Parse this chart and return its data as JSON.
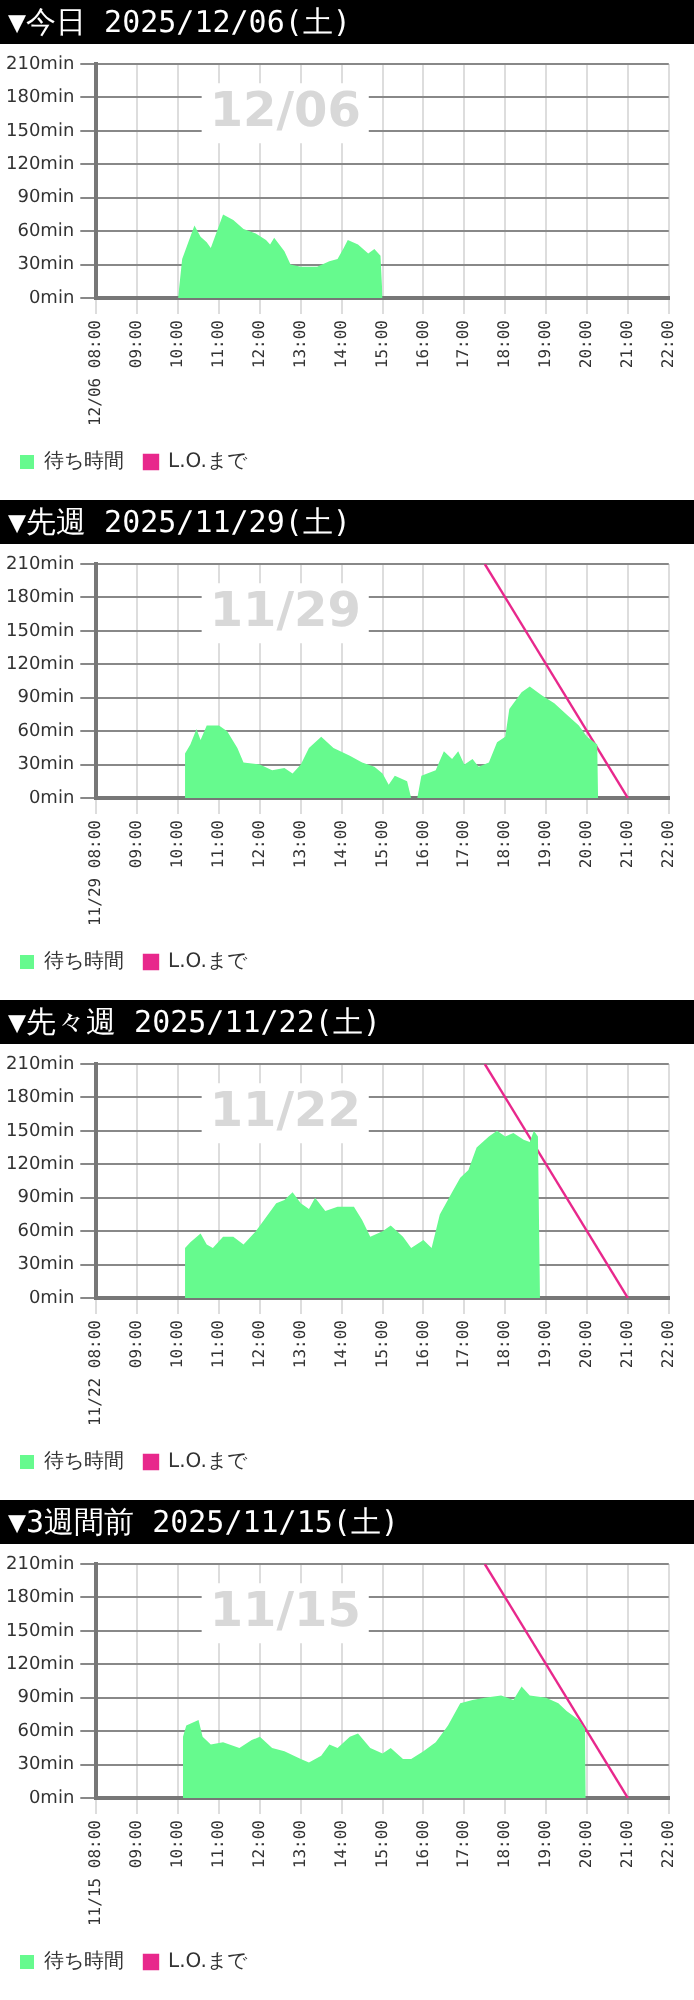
{
  "chart_data": [
    {
      "type": "area",
      "title": "▼今日 2025/12/06(土)",
      "annotations": [
        "12/06"
      ],
      "xlim": [
        8,
        22
      ],
      "xticks": [
        {
          "value": 8,
          "label": "12/06 08:00"
        },
        {
          "value": 9,
          "label": "09:00"
        },
        {
          "value": 10,
          "label": "10:00"
        },
        {
          "value": 11,
          "label": "11:00"
        },
        {
          "value": 12,
          "label": "12:00"
        },
        {
          "value": 13,
          "label": "13:00"
        },
        {
          "value": 14,
          "label": "14:00"
        },
        {
          "value": 15,
          "label": "15:00"
        },
        {
          "value": 16,
          "label": "16:00"
        },
        {
          "value": 17,
          "label": "17:00"
        },
        {
          "value": 18,
          "label": "18:00"
        },
        {
          "value": 19,
          "label": "19:00"
        },
        {
          "value": 20,
          "label": "20:00"
        },
        {
          "value": 21,
          "label": "21:00"
        },
        {
          "value": 22,
          "label": "22:00"
        }
      ],
      "ylim": [
        0,
        210
      ],
      "yticks": [
        {
          "value": 0,
          "label": "0min"
        },
        {
          "value": 30,
          "label": "30min"
        },
        {
          "value": 60,
          "label": "60min"
        },
        {
          "value": 90,
          "label": "90min"
        },
        {
          "value": 120,
          "label": "120min"
        },
        {
          "value": 150,
          "label": "150min"
        },
        {
          "value": 180,
          "label": "180min"
        },
        {
          "value": 210,
          "label": "210min"
        }
      ],
      "grid": true,
      "legend": "bottom left",
      "series": [
        {
          "name": "待ち時間",
          "type": "area",
          "color": "#66fa8e",
          "x": [
            10.0,
            10.1,
            10.25,
            10.4,
            10.55,
            10.7,
            10.8,
            11.1,
            11.35,
            11.6,
            11.9,
            12.15,
            12.25,
            12.35,
            12.6,
            12.75,
            13.0,
            13.4,
            13.7,
            13.9,
            14.05,
            14.15,
            14.4,
            14.65,
            14.8,
            14.95,
            15.0
          ],
          "values": [
            0,
            35,
            50,
            65,
            55,
            50,
            45,
            75,
            70,
            62,
            58,
            52,
            48,
            54,
            42,
            30,
            28,
            28,
            33,
            35,
            45,
            52,
            48,
            40,
            44,
            38,
            0
          ]
        },
        {
          "name": "L.O.まで",
          "type": "line",
          "color": "#e8288c"
        }
      ]
    },
    {
      "type": "area",
      "title": "▼先週 2025/11/29(土)",
      "annotations": [
        "11/29"
      ],
      "xlim": [
        8,
        22
      ],
      "xticks": [
        {
          "value": 8,
          "label": "11/29 08:00"
        },
        {
          "value": 9,
          "label": "09:00"
        },
        {
          "value": 10,
          "label": "10:00"
        },
        {
          "value": 11,
          "label": "11:00"
        },
        {
          "value": 12,
          "label": "12:00"
        },
        {
          "value": 13,
          "label": "13:00"
        },
        {
          "value": 14,
          "label": "14:00"
        },
        {
          "value": 15,
          "label": "15:00"
        },
        {
          "value": 16,
          "label": "16:00"
        },
        {
          "value": 17,
          "label": "17:00"
        },
        {
          "value": 18,
          "label": "18:00"
        },
        {
          "value": 19,
          "label": "19:00"
        },
        {
          "value": 20,
          "label": "20:00"
        },
        {
          "value": 21,
          "label": "21:00"
        },
        {
          "value": 22,
          "label": "22:00"
        }
      ],
      "ylim": [
        0,
        210
      ],
      "yticks": [
        {
          "value": 0,
          "label": "0min"
        },
        {
          "value": 30,
          "label": "30min"
        },
        {
          "value": 60,
          "label": "60min"
        },
        {
          "value": 90,
          "label": "90min"
        },
        {
          "value": 120,
          "label": "120min"
        },
        {
          "value": 150,
          "label": "150min"
        },
        {
          "value": 180,
          "label": "180min"
        },
        {
          "value": 210,
          "label": "210min"
        }
      ],
      "grid": true,
      "legend": "bottom left",
      "series": [
        {
          "name": "待ち時間",
          "type": "area",
          "color": "#66fa8e",
          "x": [
            10.15,
            10.17,
            10.3,
            10.45,
            10.55,
            10.7,
            11.0,
            11.2,
            11.45,
            11.6,
            12.0,
            12.3,
            12.6,
            12.8,
            13.0,
            13.2,
            13.5,
            13.8,
            14.2,
            14.5,
            14.8,
            15.0,
            15.15,
            15.3,
            15.6,
            15.7,
            15.85,
            15.95,
            16.3,
            16.5,
            16.7,
            16.85,
            17.0,
            17.2,
            17.35,
            17.6,
            17.8,
            18.0,
            18.1,
            18.4,
            18.6,
            18.9,
            19.2,
            19.5,
            19.8,
            20.0,
            20.25,
            20.27
          ],
          "values": [
            0,
            40,
            48,
            62,
            52,
            65,
            65,
            60,
            45,
            32,
            30,
            25,
            27,
            22,
            30,
            45,
            55,
            45,
            38,
            32,
            28,
            22,
            12,
            20,
            15,
            0,
            0,
            20,
            25,
            42,
            35,
            42,
            30,
            35,
            28,
            32,
            50,
            55,
            80,
            95,
            100,
            92,
            85,
            75,
            65,
            55,
            48,
            0
          ]
        },
        {
          "name": "L.O.まで",
          "type": "line",
          "color": "#e8288c",
          "x": [
            17.5,
            21
          ],
          "values": [
            210,
            0
          ]
        }
      ]
    },
    {
      "type": "area",
      "title": "▼先々週 2025/11/22(土)",
      "annotations": [
        "11/22"
      ],
      "xlim": [
        8,
        22
      ],
      "xticks": [
        {
          "value": 8,
          "label": "11/22 08:00"
        },
        {
          "value": 9,
          "label": "09:00"
        },
        {
          "value": 10,
          "label": "10:00"
        },
        {
          "value": 11,
          "label": "11:00"
        },
        {
          "value": 12,
          "label": "12:00"
        },
        {
          "value": 13,
          "label": "13:00"
        },
        {
          "value": 14,
          "label": "14:00"
        },
        {
          "value": 15,
          "label": "15:00"
        },
        {
          "value": 16,
          "label": "16:00"
        },
        {
          "value": 17,
          "label": "17:00"
        },
        {
          "value": 18,
          "label": "18:00"
        },
        {
          "value": 19,
          "label": "19:00"
        },
        {
          "value": 20,
          "label": "20:00"
        },
        {
          "value": 21,
          "label": "21:00"
        },
        {
          "value": 22,
          "label": "22:00"
        }
      ],
      "ylim": [
        0,
        210
      ],
      "yticks": [
        {
          "value": 0,
          "label": "0min"
        },
        {
          "value": 30,
          "label": "30min"
        },
        {
          "value": 60,
          "label": "60min"
        },
        {
          "value": 90,
          "label": "90min"
        },
        {
          "value": 120,
          "label": "120min"
        },
        {
          "value": 150,
          "label": "150min"
        },
        {
          "value": 180,
          "label": "180min"
        },
        {
          "value": 210,
          "label": "210min"
        }
      ],
      "grid": true,
      "legend": "bottom left",
      "series": [
        {
          "name": "待ち時間",
          "type": "area",
          "color": "#66fa8e",
          "x": [
            10.15,
            10.17,
            10.3,
            10.55,
            10.7,
            10.85,
            11.1,
            11.35,
            11.6,
            11.9,
            12.2,
            12.4,
            12.6,
            12.8,
            13.0,
            13.2,
            13.35,
            13.6,
            13.9,
            14.3,
            14.5,
            14.7,
            15.0,
            15.2,
            15.5,
            15.7,
            16.0,
            16.2,
            16.4,
            16.7,
            16.9,
            17.1,
            17.3,
            17.6,
            17.8,
            18.0,
            18.2,
            18.45,
            18.6,
            18.7,
            18.8,
            18.85
          ],
          "values": [
            0,
            45,
            50,
            58,
            48,
            45,
            55,
            55,
            48,
            60,
            75,
            85,
            88,
            95,
            85,
            80,
            90,
            78,
            82,
            82,
            70,
            55,
            60,
            65,
            55,
            45,
            52,
            45,
            75,
            95,
            108,
            115,
            135,
            145,
            150,
            145,
            148,
            142,
            140,
            150,
            145,
            0
          ]
        },
        {
          "name": "L.O.まで",
          "type": "line",
          "color": "#e8288c",
          "x": [
            17.5,
            21
          ],
          "values": [
            210,
            0
          ]
        }
      ]
    },
    {
      "type": "area",
      "title": "▼3週間前 2025/11/15(土)",
      "annotations": [
        "11/15"
      ],
      "xlim": [
        8,
        22
      ],
      "xticks": [
        {
          "value": 8,
          "label": "11/15 08:00"
        },
        {
          "value": 9,
          "label": "09:00"
        },
        {
          "value": 10,
          "label": "10:00"
        },
        {
          "value": 11,
          "label": "11:00"
        },
        {
          "value": 12,
          "label": "12:00"
        },
        {
          "value": 13,
          "label": "13:00"
        },
        {
          "value": 14,
          "label": "14:00"
        },
        {
          "value": 15,
          "label": "15:00"
        },
        {
          "value": 16,
          "label": "16:00"
        },
        {
          "value": 17,
          "label": "17:00"
        },
        {
          "value": 18,
          "label": "18:00"
        },
        {
          "value": 19,
          "label": "19:00"
        },
        {
          "value": 20,
          "label": "20:00"
        },
        {
          "value": 21,
          "label": "21:00"
        },
        {
          "value": 22,
          "label": "22:00"
        }
      ],
      "ylim": [
        0,
        210
      ],
      "yticks": [
        {
          "value": 0,
          "label": "0min"
        },
        {
          "value": 30,
          "label": "30min"
        },
        {
          "value": 60,
          "label": "60min"
        },
        {
          "value": 90,
          "label": "90min"
        },
        {
          "value": 120,
          "label": "120min"
        },
        {
          "value": 150,
          "label": "150min"
        },
        {
          "value": 180,
          "label": "180min"
        },
        {
          "value": 210,
          "label": "210min"
        }
      ],
      "grid": true,
      "legend": "bottom left",
      "series": [
        {
          "name": "待ち時間",
          "type": "area",
          "color": "#66fa8e",
          "x": [
            10.1,
            10.12,
            10.2,
            10.5,
            10.6,
            10.8,
            11.1,
            11.5,
            11.8,
            12.0,
            12.3,
            12.6,
            13.0,
            13.2,
            13.5,
            13.7,
            13.9,
            14.2,
            14.4,
            14.7,
            15.0,
            15.2,
            15.5,
            15.7,
            16.0,
            16.3,
            16.6,
            16.9,
            17.2,
            17.5,
            17.9,
            18.2,
            18.4,
            18.6,
            19.0,
            19.3,
            19.5,
            19.8,
            19.95,
            19.97
          ],
          "values": [
            0,
            55,
            65,
            70,
            55,
            48,
            50,
            45,
            52,
            55,
            45,
            42,
            35,
            32,
            38,
            48,
            45,
            55,
            58,
            45,
            40,
            45,
            35,
            35,
            42,
            50,
            65,
            85,
            88,
            90,
            92,
            88,
            100,
            92,
            90,
            85,
            78,
            70,
            62,
            0
          ]
        },
        {
          "name": "L.O.まで",
          "type": "line",
          "color": "#e8288c",
          "x": [
            17.5,
            21
          ],
          "values": [
            210,
            0
          ]
        }
      ]
    }
  ]
}
